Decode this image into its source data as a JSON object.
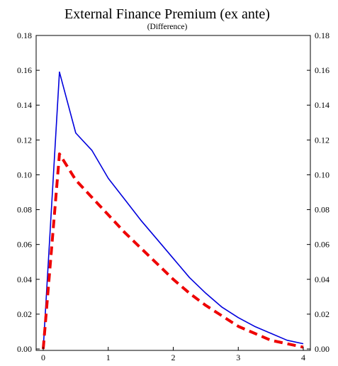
{
  "chart_data": {
    "type": "line",
    "title": "External Finance Premium (ex ante)",
    "subtitle": "(Difference)",
    "xlabel": "",
    "ylabel": "",
    "xlim": [
      0,
      4
    ],
    "ylim": [
      0,
      0.18
    ],
    "x_ticks": [
      "0",
      "1",
      "2",
      "3",
      "4"
    ],
    "y_ticks": [
      "0.00",
      "0.02",
      "0.04",
      "0.06",
      "0.08",
      "0.10",
      "0.12",
      "0.14",
      "0.16",
      "0.18"
    ],
    "grid": false,
    "series": [
      {
        "color": "#0000dd",
        "style": "solid",
        "x": [
          0,
          0.25,
          0.5,
          0.75,
          1.0,
          1.25,
          1.5,
          1.75,
          2.0,
          2.25,
          2.5,
          2.75,
          3.0,
          3.25,
          3.5,
          3.75,
          4.0
        ],
        "y": [
          0.0,
          0.159,
          0.124,
          0.114,
          0.098,
          0.086,
          0.074,
          0.063,
          0.052,
          0.041,
          0.032,
          0.024,
          0.018,
          0.013,
          0.009,
          0.005,
          0.003
        ]
      },
      {
        "color": "#ee0000",
        "style": "dashed",
        "x": [
          0,
          0.25,
          0.5,
          0.75,
          1.0,
          1.25,
          1.5,
          1.75,
          2.0,
          2.25,
          2.5,
          2.75,
          3.0,
          3.25,
          3.5,
          3.75,
          4.0
        ],
        "y": [
          0.0,
          0.112,
          0.097,
          0.087,
          0.077,
          0.067,
          0.058,
          0.049,
          0.04,
          0.032,
          0.025,
          0.019,
          0.013,
          0.009,
          0.005,
          0.003,
          0.001
        ]
      }
    ]
  }
}
